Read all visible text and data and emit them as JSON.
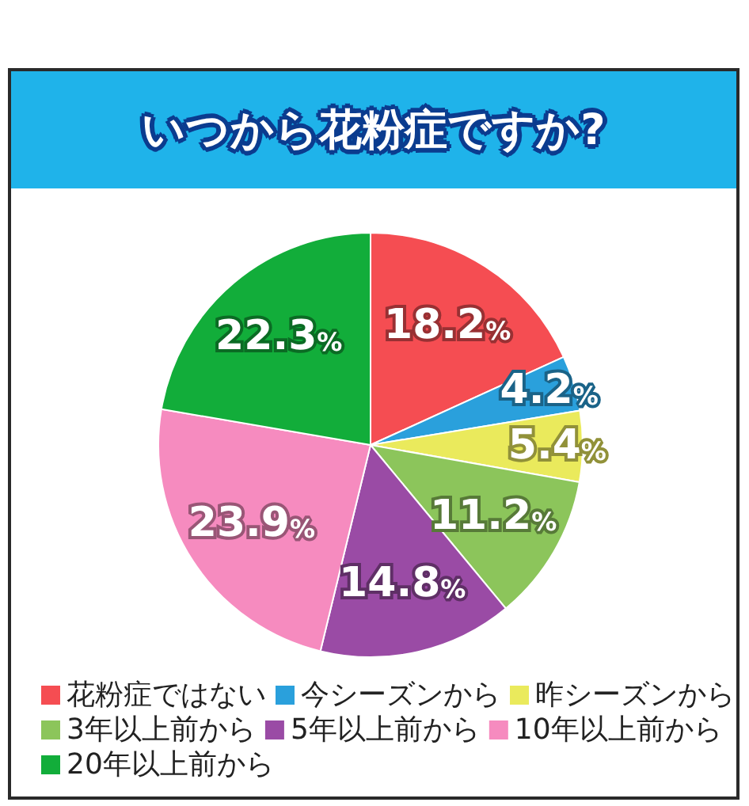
{
  "chart_data": {
    "type": "pie",
    "title": "いつから花粉症ですか?",
    "categories": [
      "花粉症ではない",
      "今シーズンから",
      "昨シーズンから",
      "3年以上前から",
      "5年以上前から",
      "10年以上前から",
      "20年以上前から"
    ],
    "values": [
      18.2,
      4.2,
      5.4,
      11.2,
      14.8,
      23.9,
      22.3
    ],
    "colors": [
      "#f54d52",
      "#2aa0dc",
      "#eaea5c",
      "#8cc55b",
      "#9a4ba5",
      "#f68bbf",
      "#12ad3a"
    ],
    "value_labels": [
      "18.2%",
      "4.2%",
      "5.4%",
      "11.2%",
      "14.8%",
      "23.9%",
      "22.3%"
    ],
    "legend": "bottom"
  }
}
